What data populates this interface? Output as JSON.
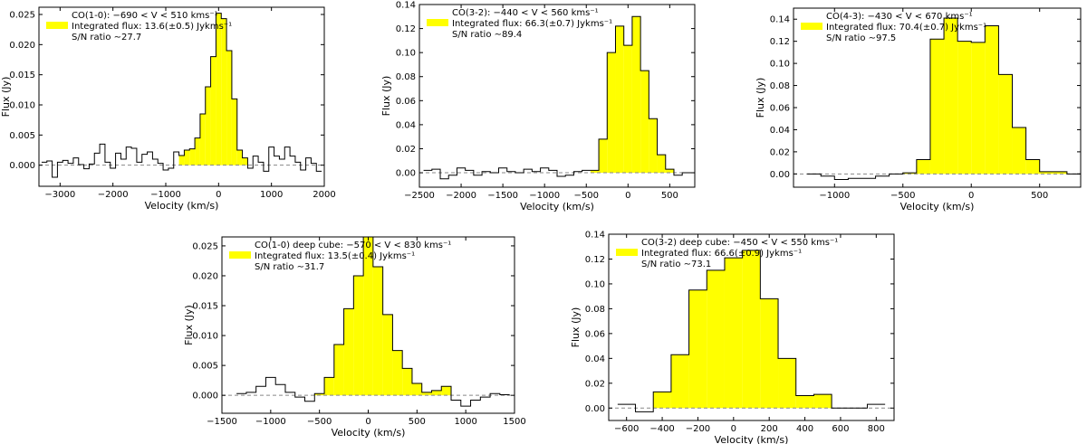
{
  "colors": {
    "fill": "#ffff00",
    "line": "#000000",
    "zero": "#888888"
  },
  "chart_data": [
    {
      "type": "line",
      "name": "co10",
      "xlabel": "Velocity (km/s)",
      "ylabel": "Flux (Jy)",
      "xlim": [
        -3400,
        2000
      ],
      "ylim": [
        -0.0035,
        0.0262
      ],
      "xticks": [
        -3000,
        -2000,
        -1000,
        0,
        1000,
        2000
      ],
      "xtick_labels": [
        "−3000",
        "−2000",
        "−1000",
        "0",
        "1000",
        "2000"
      ],
      "yticks": [
        0.0,
        0.005,
        0.01,
        0.015,
        0.02,
        0.025
      ],
      "ytick_labels": [
        "0.000",
        "0.005",
        "0.010",
        "0.015",
        "0.020",
        "0.025"
      ],
      "legend": {
        "title": "CO(1-0): −690 < V < 510 kms⁻¹",
        "flux": "Integrated flux: 13.6(±0.5) Jykms⁻¹",
        "sn": "S/N ratio ∼27.7"
      },
      "fill_range": [
        -690,
        510
      ],
      "x": [
        -3300,
        -3200,
        -3100,
        -3000,
        -2900,
        -2800,
        -2700,
        -2600,
        -2500,
        -2400,
        -2300,
        -2200,
        -2100,
        -2000,
        -1900,
        -1800,
        -1700,
        -1600,
        -1500,
        -1400,
        -1300,
        -1200,
        -1100,
        -1000,
        -900,
        -800,
        -700,
        -600,
        -500,
        -400,
        -300,
        -200,
        -100,
        0,
        100,
        200,
        300,
        400,
        500,
        600,
        700,
        800,
        900,
        1000,
        1100,
        1200,
        1300,
        1400,
        1500,
        1600,
        1700,
        1800,
        1900
      ],
      "y": [
        0.0005,
        0.0007,
        -0.002,
        0.0005,
        0.0008,
        0.0003,
        0.0012,
        0.0001,
        -0.0006,
        0.0002,
        0.002,
        0.0035,
        0.0005,
        -0.0005,
        0.002,
        0.001,
        0.003,
        0.0028,
        0.0005,
        0.0018,
        0.0022,
        0.001,
        0.0003,
        -0.0008,
        -0.0005,
        0.0022,
        0.0016,
        0.0025,
        0.0027,
        0.0045,
        0.0085,
        0.013,
        0.018,
        0.0252,
        0.0243,
        0.019,
        0.011,
        0.0025,
        0.0012,
        -0.0005,
        0.0015,
        0.0005,
        -0.001,
        0.003,
        0.0015,
        0.001,
        0.003,
        0.0015,
        0.0005,
        -0.0008,
        0.0012,
        0.0003,
        -0.001
      ]
    },
    {
      "type": "line",
      "name": "co32",
      "xlabel": "Velocity (km/s)",
      "ylabel": "Flux (Jy)",
      "xlim": [
        -2500,
        800
      ],
      "ylim": [
        -0.012,
        0.14
      ],
      "xticks": [
        -2500,
        -2000,
        -1500,
        -1000,
        -500,
        0,
        500
      ],
      "xtick_labels": [
        "−2500",
        "−2000",
        "−1500",
        "−1000",
        "−500",
        "0",
        "500"
      ],
      "yticks": [
        0.0,
        0.02,
        0.04,
        0.06,
        0.08,
        0.1,
        0.12,
        0.14
      ],
      "ytick_labels": [
        "0.00",
        "0.02",
        "0.04",
        "0.06",
        "0.08",
        "0.10",
        "0.12",
        "0.14"
      ],
      "legend": {
        "title": "CO(3-2): −440 < V < 560 kms⁻¹",
        "flux": "Integrated flux: 66.3(±0.7) Jykms⁻¹",
        "sn": "S/N ratio ∼89.4"
      },
      "fill_range": [
        -440,
        560
      ],
      "x": [
        -2400,
        -2300,
        -2200,
        -2100,
        -2000,
        -1900,
        -1800,
        -1700,
        -1600,
        -1500,
        -1400,
        -1300,
        -1200,
        -1100,
        -1000,
        -900,
        -800,
        -700,
        -600,
        -500,
        -400,
        -300,
        -200,
        -100,
        0,
        100,
        200,
        300,
        400,
        500,
        600,
        700,
        800
      ],
      "y": [
        0.002,
        0.003,
        -0.005,
        -0.002,
        0.004,
        0.002,
        -0.002,
        0.001,
        0.0,
        0.004,
        0.001,
        0.0,
        0.003,
        0.001,
        0.004,
        0.002,
        -0.003,
        -0.002,
        0.001,
        0.002,
        0.002,
        0.028,
        0.1,
        0.122,
        0.106,
        0.13,
        0.085,
        0.045,
        0.015,
        0.003,
        -0.002,
        0.0,
        0.0
      ]
    },
    {
      "type": "line",
      "name": "co43",
      "xlabel": "Velocity (km/s)",
      "ylabel": "Flux (Jy)",
      "xlim": [
        -1300,
        800
      ],
      "ylim": [
        -0.012,
        0.15
      ],
      "xticks": [
        -1000,
        -500,
        0,
        500
      ],
      "xtick_labels": [
        "−1000",
        "−500",
        "0",
        "500"
      ],
      "yticks": [
        0.0,
        0.02,
        0.04,
        0.06,
        0.08,
        0.1,
        0.12,
        0.14
      ],
      "ytick_labels": [
        "0.00",
        "0.02",
        "0.04",
        "0.06",
        "0.08",
        "0.10",
        "0.12",
        "0.14"
      ],
      "legend": {
        "title": "CO(4-3): −430 < V < 670 kms⁻¹",
        "flux": "Integrated flux: 70.4(±0.7) Jykms⁻¹",
        "sn": "S/N ratio ∼97.5"
      },
      "fill_range": [
        -430,
        670
      ],
      "x": [
        -1150,
        -1050,
        -950,
        -850,
        -750,
        -650,
        -550,
        -450,
        -350,
        -250,
        -150,
        -50,
        50,
        150,
        250,
        350,
        450,
        550,
        650,
        750
      ],
      "y": [
        0.0,
        -0.002,
        -0.005,
        -0.004,
        -0.004,
        -0.002,
        0.0,
        0.001,
        0.013,
        0.122,
        0.141,
        0.12,
        0.119,
        0.134,
        0.09,
        0.042,
        0.013,
        0.002,
        0.002,
        0.0
      ]
    },
    {
      "type": "line",
      "name": "co10deep",
      "xlabel": "Velocity (km/s)",
      "ylabel": "Flux (Jy)",
      "xlim": [
        -1500,
        1500
      ],
      "ylim": [
        -0.003,
        0.0265
      ],
      "xticks": [
        -1500,
        -1000,
        -500,
        0,
        500,
        1000,
        1500
      ],
      "xtick_labels": [
        "−1500",
        "−1000",
        "−500",
        "0",
        "500",
        "1000",
        "1500"
      ],
      "yticks": [
        0.0,
        0.005,
        0.01,
        0.015,
        0.02,
        0.025
      ],
      "ytick_labels": [
        "0.000",
        "0.005",
        "0.010",
        "0.015",
        "0.020",
        "0.025"
      ],
      "legend": {
        "title": "CO(1-0) deep cube: −570 < V < 830 kms⁻¹",
        "flux": "Integrated flux: 13.5(±0.4) Jykms⁻¹",
        "sn": "S/N ratio ∼31.7"
      },
      "fill_range": [
        -570,
        830
      ],
      "x": [
        -1300,
        -1200,
        -1100,
        -1000,
        -900,
        -800,
        -700,
        -600,
        -500,
        -400,
        -300,
        -200,
        -100,
        0,
        100,
        200,
        300,
        400,
        500,
        600,
        700,
        800,
        900,
        1000,
        1100,
        1200,
        1300,
        1400
      ],
      "y": [
        0.0003,
        0.0005,
        0.0015,
        0.003,
        0.0018,
        0.0005,
        -0.0003,
        -0.001,
        0.0003,
        0.003,
        0.0085,
        0.0145,
        0.02,
        0.0265,
        0.0215,
        0.0135,
        0.0075,
        0.0045,
        0.002,
        0.0005,
        0.0008,
        0.0015,
        -0.0008,
        -0.0018,
        -0.0008,
        -0.0003,
        0.0003,
        0.0001
      ]
    },
    {
      "type": "line",
      "name": "co32deep",
      "xlabel": "Velocity (km/s)",
      "ylabel": "Flux (Jy)",
      "xlim": [
        -700,
        900
      ],
      "ylim": [
        -0.01,
        0.14
      ],
      "xticks": [
        -600,
        -400,
        -200,
        0,
        200,
        400,
        600,
        800
      ],
      "xtick_labels": [
        "−600",
        "−400",
        "−200",
        "0",
        "200",
        "400",
        "600",
        "800"
      ],
      "yticks": [
        0.0,
        0.02,
        0.04,
        0.06,
        0.08,
        0.1,
        0.12,
        0.14
      ],
      "ytick_labels": [
        "0.00",
        "0.02",
        "0.04",
        "0.06",
        "0.08",
        "0.10",
        "0.12",
        "0.14"
      ],
      "legend": {
        "title": "CO(3-2) deep cube: −450 < V < 550 kms⁻¹",
        "flux": "Integrated flux: 66.6(±0.9) Jykms⁻¹",
        "sn": "S/N ratio ∼73.1"
      },
      "fill_range": [
        -450,
        550
      ],
      "x": [
        -600,
        -500,
        -400,
        -300,
        -200,
        -100,
        0,
        100,
        200,
        300,
        400,
        500,
        600,
        700,
        800
      ],
      "y": [
        0.003,
        -0.003,
        0.013,
        0.043,
        0.095,
        0.111,
        0.121,
        0.127,
        0.088,
        0.04,
        0.01,
        0.011,
        0.0,
        0.0,
        0.003
      ]
    }
  ]
}
